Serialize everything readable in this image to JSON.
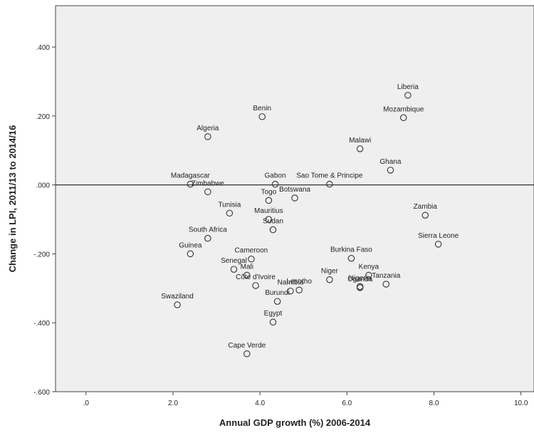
{
  "chart_data": {
    "type": "scatter",
    "title": "",
    "xlabel": "Annual GDP growth (%) 2006-2014",
    "ylabel": "Change in LPI, 2011/13 to 2014/16",
    "xlim": [
      -0.7,
      10.3
    ],
    "ylim": [
      -0.6,
      0.52
    ],
    "x_ticks": [
      0,
      2,
      4,
      6,
      8,
      10
    ],
    "x_tick_labels": [
      ".0",
      "2.0",
      "4.0",
      "6.0",
      "8.0",
      "10.0"
    ],
    "y_ticks": [
      0.4,
      0.2,
      0.0,
      -0.2,
      -0.4,
      -0.6
    ],
    "y_tick_labels": [
      ".400",
      ".200",
      ".000",
      "-.200",
      "-.400",
      "-.600"
    ],
    "reference_line_y": 0.0,
    "grid": false,
    "legend": "none",
    "colors": {
      "plot_bg": "#efefef",
      "marker": "#333333",
      "axis": "#444444"
    },
    "points": [
      {
        "label": "Liberia",
        "x": 7.4,
        "y": 0.26
      },
      {
        "label": "Mozambique",
        "x": 7.3,
        "y": 0.195
      },
      {
        "label": "Benin",
        "x": 4.05,
        "y": 0.198
      },
      {
        "label": "Algeria",
        "x": 2.8,
        "y": 0.14
      },
      {
        "label": "Malawi",
        "x": 6.3,
        "y": 0.105
      },
      {
        "label": "Ghana",
        "x": 7.0,
        "y": 0.043
      },
      {
        "label": "Sao Tome & Principe",
        "x": 5.6,
        "y": 0.002
      },
      {
        "label": "Madagascar",
        "x": 2.4,
        "y": 0.002
      },
      {
        "label": "Gabon",
        "x": 4.35,
        "y": 0.002
      },
      {
        "label": "Zimbabwe",
        "x": 2.8,
        "y": -0.02
      },
      {
        "label": "Togo",
        "x": 4.2,
        "y": -0.045
      },
      {
        "label": "Botswana",
        "x": 4.8,
        "y": -0.038
      },
      {
        "label": "Tunisia",
        "x": 3.3,
        "y": -0.082
      },
      {
        "label": "Mauritius",
        "x": 4.2,
        "y": -0.1
      },
      {
        "label": "Sudan",
        "x": 4.3,
        "y": -0.13
      },
      {
        "label": "Zambia",
        "x": 7.8,
        "y": -0.088
      },
      {
        "label": "South Africa",
        "x": 2.8,
        "y": -0.155
      },
      {
        "label": "Sierra Leone",
        "x": 8.1,
        "y": -0.172
      },
      {
        "label": "Guinea",
        "x": 2.4,
        "y": -0.2
      },
      {
        "label": "Cameroon",
        "x": 3.8,
        "y": -0.215
      },
      {
        "label": "Burkina Faso",
        "x": 6.1,
        "y": -0.213
      },
      {
        "label": "Senegal",
        "x": 3.4,
        "y": -0.245
      },
      {
        "label": "Mali",
        "x": 3.7,
        "y": -0.262
      },
      {
        "label": "Kenya",
        "x": 6.5,
        "y": -0.262
      },
      {
        "label": "Niger",
        "x": 5.6,
        "y": -0.275
      },
      {
        "label": "Côte d'Ivoire",
        "x": 3.9,
        "y": -0.292
      },
      {
        "label": "Namibia",
        "x": 4.7,
        "y": -0.308
      },
      {
        "label": "Lesotho",
        "x": 4.9,
        "y": -0.305
      },
      {
        "label": "Tanzania",
        "x": 6.9,
        "y": -0.288
      },
      {
        "label": "Nigeria",
        "x": 6.3,
        "y": -0.295
      },
      {
        "label": "Swaziland",
        "x": 2.1,
        "y": -0.348
      },
      {
        "label": "Burundi",
        "x": 4.4,
        "y": -0.338
      },
      {
        "label": "Uganda",
        "x": 6.3,
        "y": -0.298
      },
      {
        "label": "Egypt",
        "x": 4.3,
        "y": -0.398
      },
      {
        "label": "Cape Verde",
        "x": 3.7,
        "y": -0.49
      }
    ]
  }
}
